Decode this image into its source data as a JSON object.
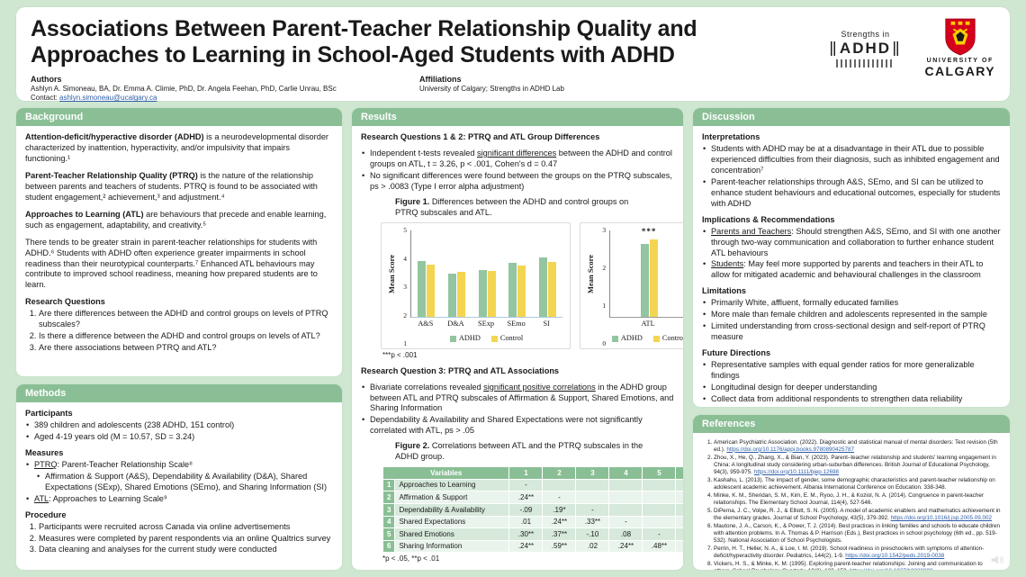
{
  "colors": {
    "page_bg": "#cfe7d1",
    "green": "#8abf95",
    "adhd": "#93c5a0",
    "control": "#f4d552",
    "link": "#2e5ea8",
    "uofc_red": "#d6001c",
    "uofc_gold": "#ffcd00"
  },
  "header": {
    "title_lines": [
      "Associations Between Parent-Teacher Relationship Quality and",
      "Approaches to Learning in School-Aged Students with ADHD"
    ],
    "authors_label": "Authors",
    "authors": "Ashlyn A. Simoneau, BA, Dr. Emma A. Climie, PhD, Dr. Angela Feehan, PhD, Carlie Unrau, BSc",
    "contact_label": "Contact: ",
    "contact_email": "ashlyn.simoneau@ucalgary.ca",
    "affiliations_label": "Affiliations",
    "affiliations": "University of Calgary; Strengths in ADHD Lab",
    "logo_strengths": {
      "line1": "Strengths in",
      "line2": "ADHD"
    },
    "logo_uofc": {
      "line1": "UNIVERSITY OF",
      "line2": "CALGARY"
    }
  },
  "background": {
    "section_title": "Background",
    "paragraphs": [
      {
        "lead": "Attention-deficit/hyperactive disorder (ADHD)",
        "rest": " is a neurodevelopmental disorder characterized by inattention, hyperactivity, and/or impulsivity that impairs functioning.¹"
      },
      {
        "lead": "Parent-Teacher Relationship Quality (PTRQ)",
        "rest": " is the nature of the relationship between parents and teachers of students. PTRQ is found to be associated with student engagement,² achievement,³ and adjustment.⁴"
      },
      {
        "lead": "Approaches to Learning (ATL)",
        "rest": " are behaviours that precede and enable learning, such as engagement, adaptability, and creativity.⁵"
      },
      {
        "lead": "",
        "rest": "There tends to be greater strain in parent-teacher relationships for students with ADHD.⁶ Students with ADHD often experience greater impairments in school readiness than their neurotypical counterparts.⁷ Enhanced ATL behaviours may contribute to improved school readiness, meaning how prepared students are to learn."
      }
    ],
    "research_questions_heading": "Research Questions",
    "research_questions": [
      "Are there differences between the ADHD and control groups on levels of PTRQ subscales?",
      "Is there a difference between the ADHD and control groups on levels of ATL?",
      "Are there associations between PTRQ and ATL?"
    ]
  },
  "methods": {
    "section_title": "Methods",
    "participants_heading": "Participants",
    "participants": [
      "389 children and adolescents (238 ADHD, 151 control)",
      "Aged 4-19 years old (M = 10.57, SD = 3.24)"
    ],
    "measures_heading": "Measures",
    "measures": [
      {
        "u": "PTRQ",
        "post": ": Parent-Teacher Relationship Scale⁸"
      },
      {
        "text": "Affirmation & Support (A&S), Dependability & Availability (D&A), Shared Expectations (SExp), Shared Emotions (SEmo), and Sharing Information (SI)",
        "indent": true
      },
      {
        "u": "ATL",
        "post": ": Approaches to Learning Scale⁹"
      }
    ],
    "procedure_heading": "Procedure",
    "procedure": [
      "Participants were recruited across Canada via online advertisements",
      "Measures were completed by parent respondents via an online Qualtrics survey",
      "Data cleaning and analyses for the current study were conducted"
    ]
  },
  "results": {
    "section_title": "Results",
    "rq12_heading": "Research Questions 1 & 2: PTRQ and ATL Group Differences",
    "rq12_bullets": [
      {
        "pre": "Independent t-tests revealed ",
        "u": "significant differences",
        "post": " between the ADHD and control groups on ATL, t = 3.26, p < .001, Cohen's d = 0.47"
      },
      {
        "text": "No significant differences were found between the groups on the PTRQ subscales, ps > .0083 (Type I error alpha adjustment)"
      }
    ],
    "fig1_caption_lead": "Figure 1.",
    "fig1_caption_rest": " Differences between the ADHD and control groups on PTRQ subscales and ATL.",
    "fig1_note": "***p < .001",
    "rq3_heading": "Research Question 3: PTRQ and ATL Associations",
    "rq3_bullets": [
      {
        "pre": "Bivariate correlations revealed ",
        "u": "significant positive correlations",
        "post": " in the ADHD group between ATL and PTRQ subscales of Affirmation & Support, Shared Emotions, and Sharing Information"
      },
      {
        "text": "Dependability & Availability and Shared Expectations were not significantly correlated with ATL, ps > .05"
      }
    ],
    "fig2_caption_lead": "Figure 2.",
    "fig2_caption_rest": " Correlations between ATL and the PTRQ subscales in the ADHD group.",
    "fig2_note": "*p < .05, **p < .01"
  },
  "chart_data": [
    {
      "id": "figure1-ptrq",
      "type": "bar",
      "title": "PTRQ subscales group differences",
      "categories": [
        "A&S",
        "D&A",
        "SExp",
        "SEmo",
        "SI"
      ],
      "series": [
        {
          "name": "ADHD",
          "values": [
            3.57,
            2.97,
            3.16,
            3.48,
            3.74
          ]
        },
        {
          "name": "Control",
          "values": [
            3.42,
            3.08,
            3.13,
            3.38,
            3.54
          ]
        }
      ],
      "colors": [
        "#93c5a0",
        "#f4d552"
      ],
      "xlabel": "",
      "ylabel": "Mean Score",
      "ylim": [
        1,
        5
      ],
      "yticks": [
        1,
        2,
        3,
        4,
        5
      ],
      "grid": false,
      "legend_position": "bottom"
    },
    {
      "id": "figure1-atl",
      "type": "bar",
      "title": "ATL group difference",
      "categories": [
        "ATL"
      ],
      "series": [
        {
          "name": "ADHD",
          "values": [
            2.52
          ]
        },
        {
          "name": "Control",
          "values": [
            2.69
          ]
        }
      ],
      "colors": [
        "#93c5a0",
        "#f4d552"
      ],
      "xlabel": "",
      "ylabel": "Mean Score",
      "ylim": [
        0,
        3
      ],
      "yticks": [
        0,
        1,
        2,
        3
      ],
      "grid": false,
      "legend_position": "bottom",
      "annotation": {
        "category": "ATL",
        "text": "***"
      }
    },
    {
      "id": "figure2-correlations",
      "type": "table",
      "columns": [
        "Variables",
        "1",
        "2",
        "3",
        "4",
        "5",
        "6"
      ],
      "rows": [
        {
          "num": "1",
          "label": "Approaches to Learning",
          "values": [
            "-",
            "",
            "",
            "",
            "",
            ""
          ]
        },
        {
          "num": "2",
          "label": "Affirmation & Support",
          "values": [
            ".24**",
            "-",
            "",
            "",
            "",
            ""
          ]
        },
        {
          "num": "3",
          "label": "Dependability & Availability",
          "values": [
            "-.09",
            ".19*",
            "-",
            "",
            "",
            ""
          ]
        },
        {
          "num": "4",
          "label": "Shared Expectations",
          "values": [
            ".01",
            ".24**",
            ".33**",
            "-",
            "",
            ""
          ]
        },
        {
          "num": "5",
          "label": "Shared Emotions",
          "values": [
            ".30**",
            ".37**",
            "-.10",
            ".08",
            "-",
            ""
          ]
        },
        {
          "num": "6",
          "label": "Sharing Information",
          "values": [
            ".24**",
            ".59**",
            ".02",
            ".24**",
            ".48**",
            "-"
          ]
        }
      ]
    }
  ],
  "discussion": {
    "section_title": "Discussion",
    "interpretations_heading": "Interpretations",
    "interpretations": [
      {
        "text": "Students with ADHD may be at a disadvantage in their ATL due to possible experienced difficulties from their diagnosis, such as inhibited engagement and concentration⁷"
      },
      {
        "text": "Parent-teacher relationships through A&S, SEmo, and SI can be utilized to enhance student behaviours and educational outcomes, especially for students with ADHD"
      }
    ],
    "implications_heading": "Implications & Recommendations",
    "implications": [
      {
        "u": "Parents and Teachers",
        "post": ": Should strengthen A&S, SEmo, and SI with one another through two-way communication and collaboration to further enhance student ATL behaviours"
      },
      {
        "u": "Students",
        "post": ": May feel more supported by parents and teachers in their ATL to allow for mitigated academic and behavioural challenges in the classroom"
      }
    ],
    "limitations_heading": "Limitations",
    "limitations": [
      {
        "text": "Primarily White, affluent, formally educated families"
      },
      {
        "text": "More male than female children and adolescents represented in the sample"
      },
      {
        "text": "Limited understanding from cross-sectional design and self-report of PTRQ measure"
      }
    ],
    "future_heading": "Future Directions",
    "future": [
      {
        "text": "Representative samples with equal gender ratios for more generalizable findings"
      },
      {
        "text": "Longitudinal design for deeper understanding"
      },
      {
        "text": "Collect data from additional respondents to strengthen data reliability"
      }
    ]
  },
  "references": {
    "section_title": "References",
    "items": [
      {
        "text": "American Psychiatric Association. (2022). Diagnostic and statistical manual of mental disorders: Text revision (5th ed.). ",
        "link": "https://doi.org/10.1176/appi.books.9780890425787"
      },
      {
        "text": "Zhou, X., He, Q., Zhang, X., & Bian, Y. (2023). Parent–teacher relationship and students' learning engagement in China: A longitudinal study considering urban-suburban differences. British Journal of Educational Psychology, 94(3), 959-975. ",
        "link": "https://doi.org/10.1111/bjep.12698"
      },
      {
        "text": "Kashahu, L. (2013). The impact of gender, some demographic characteristics and parent-teacher relationship on adolescent academic achievement. Albania International Conference on Education. 338-348.",
        "link": ""
      },
      {
        "text": "Minke, K. M., Sheridan, S. M., Kim, E. M., Ryoo, J. H., & Koziol, N. A. (2014). Congruence in parent-teacher relationships. The Elementary School Journal, 114(4), 527-546.",
        "link": ""
      },
      {
        "text": "DiPerna, J. C., Volpe, R. J., & Elliott, S. N. (2005). A model of academic enablers and mathematics achievement in the elementary grades. Journal of School Psychology, 43(5), 379-392. ",
        "link": "https://doi.org/10.1016/j.jsp.2005.09.002"
      },
      {
        "text": "Mautone, J. A., Carson, K., & Power, T. J. (2014). Best practices in linking families and schools to educate children with attention problems. In A. Thomas & P. Harrison (Eds.), Best practices in school psychology (6th ed., pp. 519-532). National Association of School Psychologists.",
        "link": ""
      },
      {
        "text": "Perrin, H. T., Heller, N. A., & Loe, I. M. (2019). School readiness in preschoolers with symptoms of attention-deficit/hyperactivity disorder. Pediatrics, 144(2), 1-9. ",
        "link": "https://doi.org/10.1542/peds.2019-0038"
      },
      {
        "text": "Vickers, H. S., & Minke, K. M. (1995). Exploring parent-teacher relationships: Joining and communication to others. School Psychology Quarterly, 10(2), 133–150. ",
        "link": "https://doi.org/10.1037/h0088300"
      },
      {
        "text": "Meisels, S. J., & Atkins-Burnett, S. (1999). Social Skills Rating System field trial analysis report and recommendations. Final project report prepared for National Opinion Research Center.",
        "link": ""
      }
    ]
  }
}
